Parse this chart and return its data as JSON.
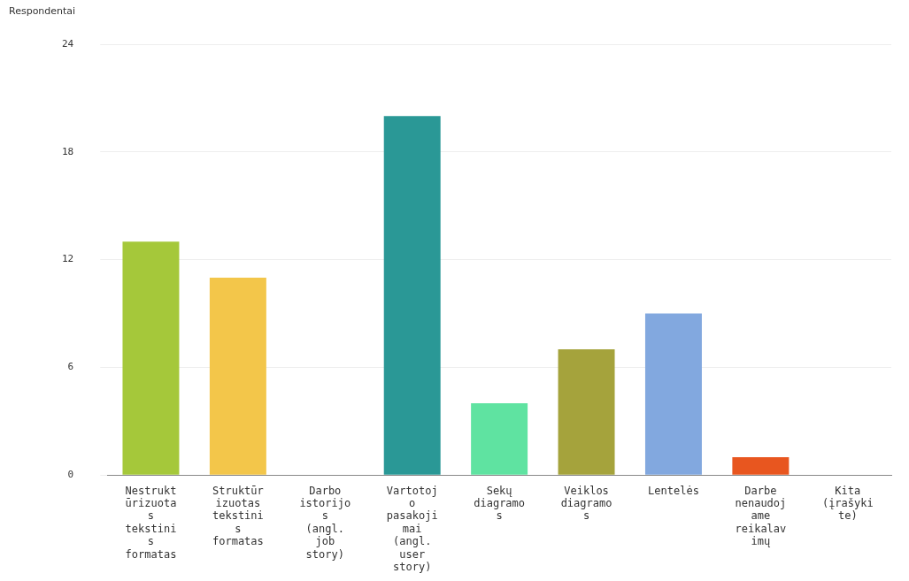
{
  "chart_data": {
    "type": "bar",
    "ylabel": "Respondentai",
    "categories": [
      "Nestruktūrizuotas tekstinis formatas",
      "Struktūrizuotas tekstinis formatas",
      "Darbo istorijos (angl. job story)",
      "Vartotojo pasakojimai (angl. user story)",
      "Sekų diagramos",
      "Veiklos diagramos",
      "Lentelės",
      "Darbe nenaudojame reikalavimų",
      "Kita (įrašykite)"
    ],
    "values": [
      13,
      11,
      0,
      20,
      4,
      7,
      9,
      1,
      0
    ],
    "colors": [
      "#a5c83a",
      "#f3c64a",
      "#cccccc",
      "#2a9896",
      "#5fe3a1",
      "#a5a33c",
      "#82a8df",
      "#e8561f",
      "#cccccc"
    ],
    "ylim": [
      0,
      24
    ],
    "yticks": [
      0,
      6,
      12,
      18,
      24
    ],
    "grid": "y",
    "legend": false
  }
}
